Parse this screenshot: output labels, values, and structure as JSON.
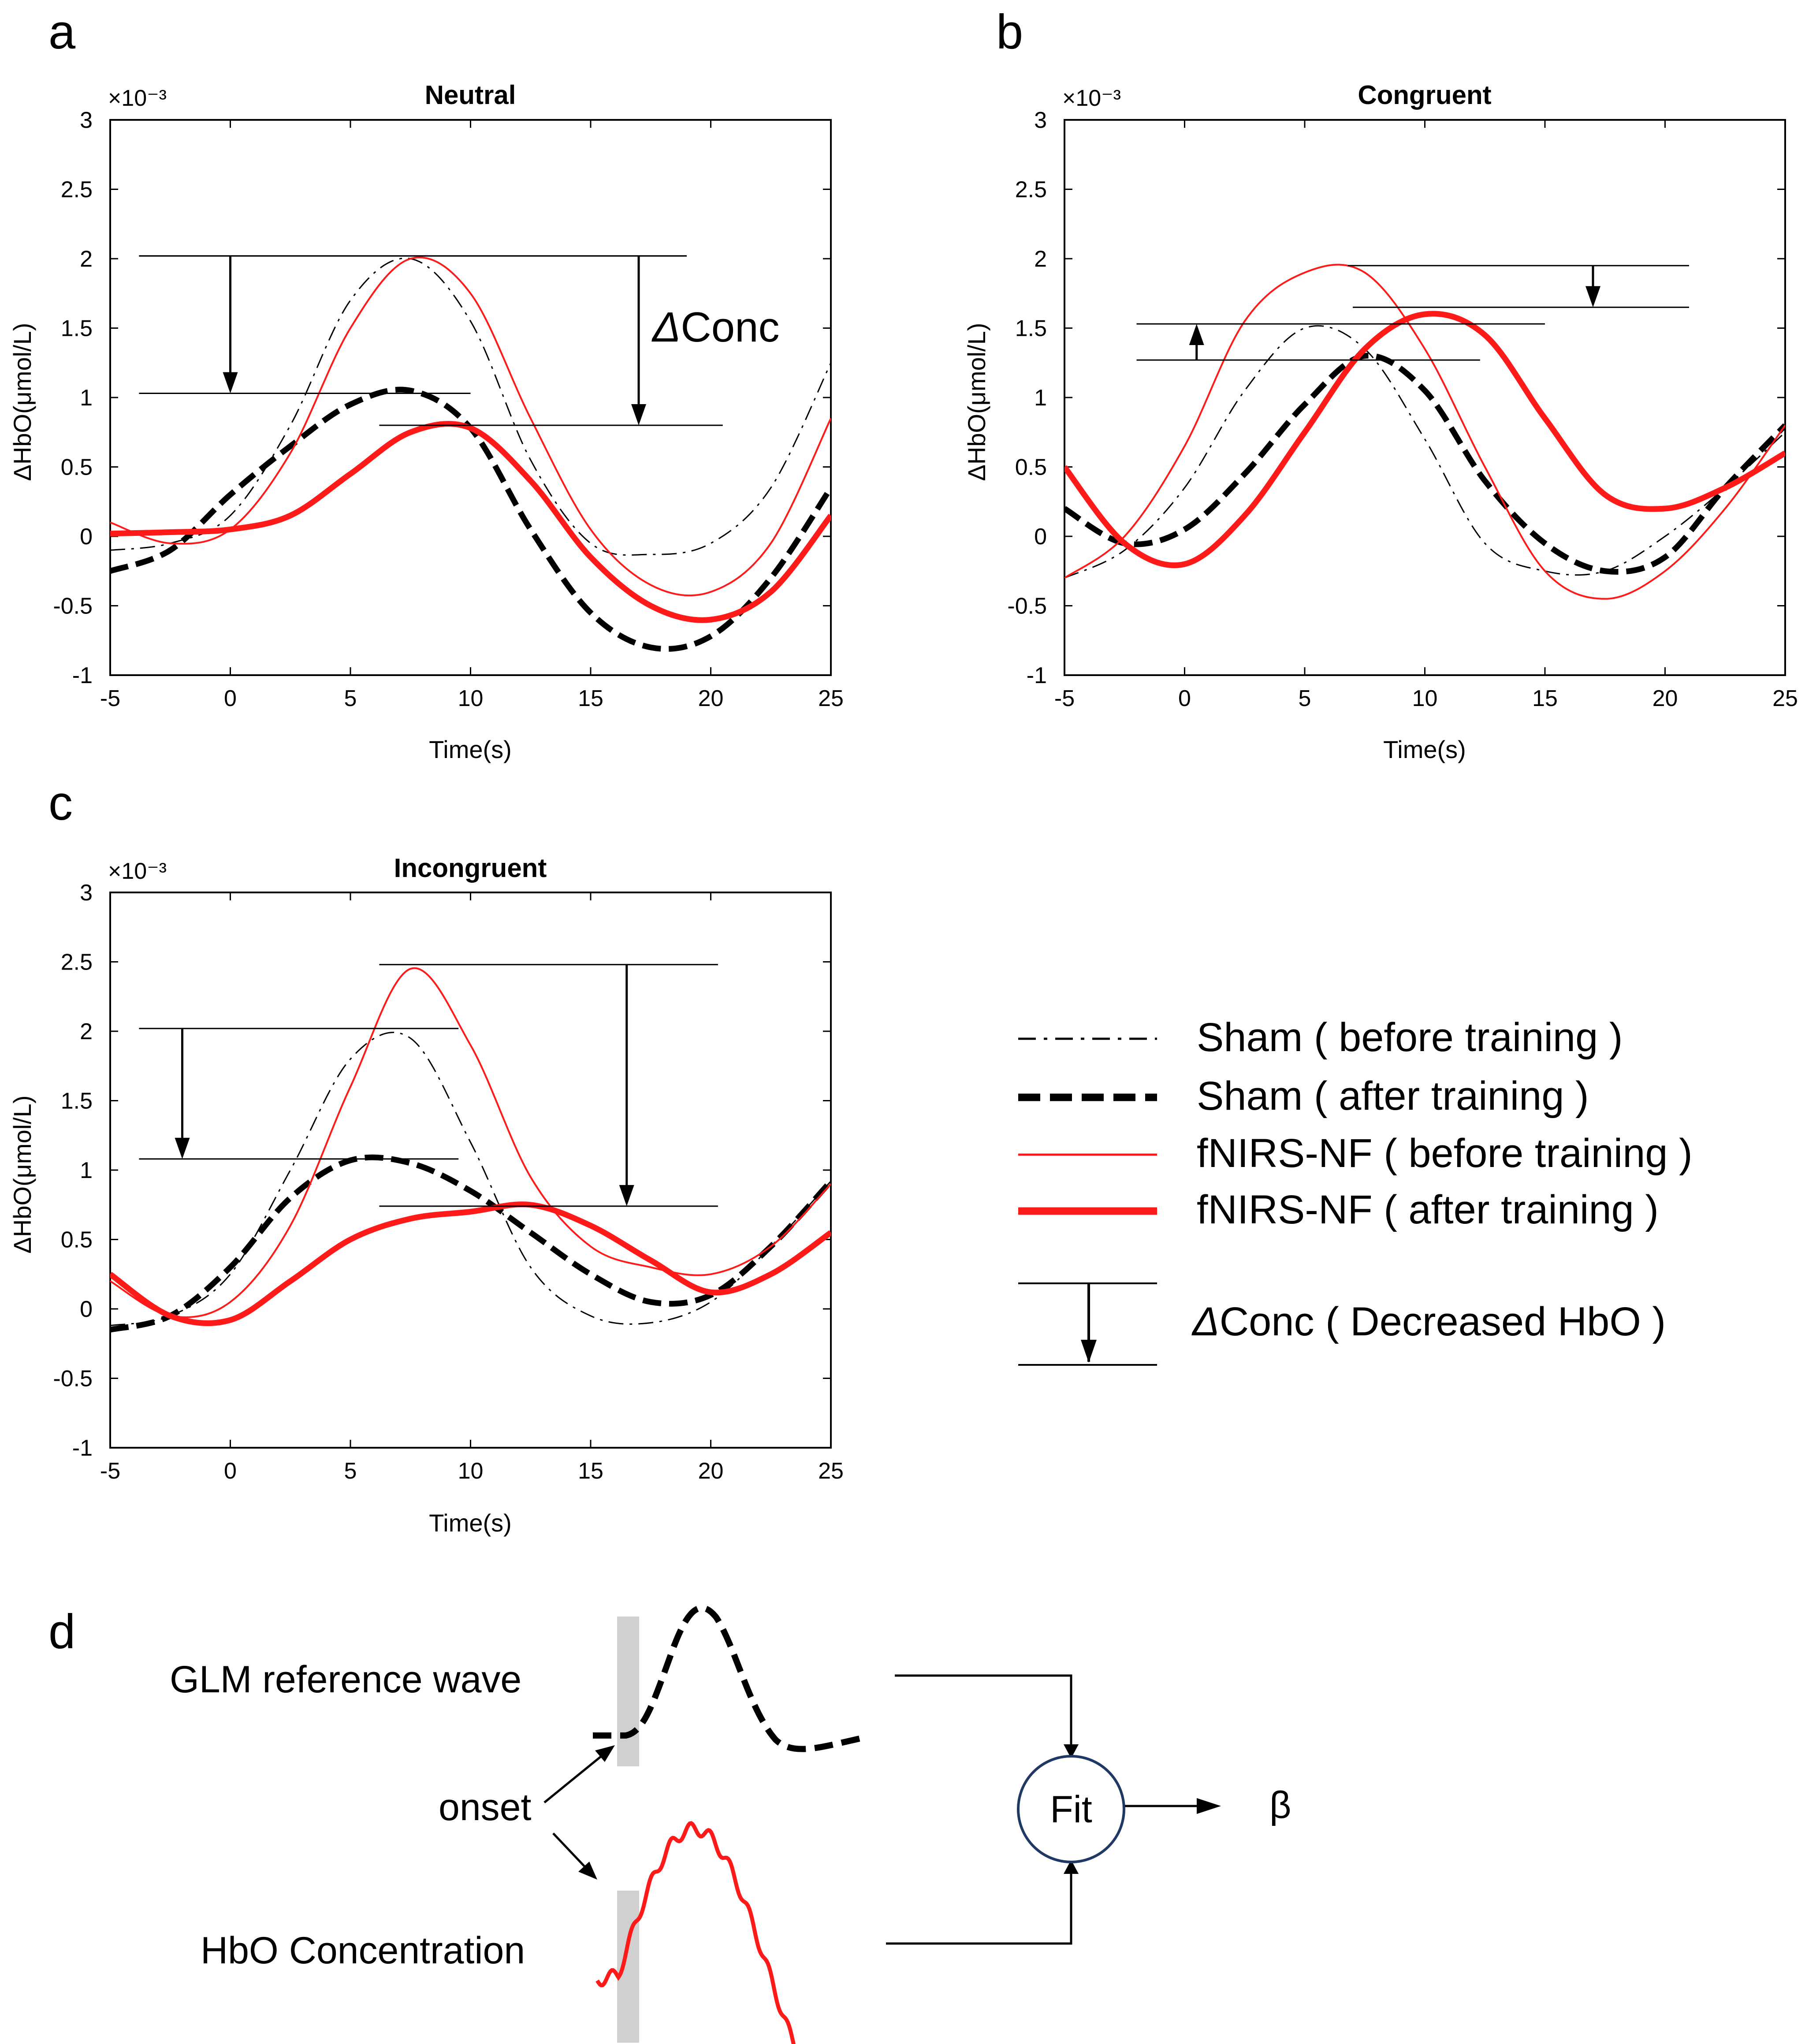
{
  "colors": {
    "sham": "#000000",
    "nf": "#ff1a1a",
    "fit_circle": "#1f3864",
    "onset_bar": "#d0d0d0"
  },
  "chart_data": [
    {
      "type": "line",
      "panel": "a",
      "title": "Neutral",
      "xlabel": "Time(s)",
      "ylabel": "ΔHbO(μmol/L)",
      "yscale": "×10⁻³",
      "xlim": [
        -5,
        25
      ],
      "ylim": [
        -1,
        3
      ],
      "xticks": [
        -5,
        0,
        5,
        10,
        15,
        20,
        25
      ],
      "yticks": [
        -1,
        -0.5,
        0,
        0.5,
        1,
        1.5,
        2,
        2.5,
        3
      ],
      "series": [
        {
          "name": "Sham ( before training )",
          "x": [
            -5,
            -2.5,
            0,
            2.5,
            5,
            7.5,
            10,
            12.5,
            15,
            17.5,
            20,
            22.5,
            25
          ],
          "values": [
            -0.1,
            -0.05,
            0.15,
            0.8,
            1.7,
            2.0,
            1.55,
            0.55,
            -0.05,
            -0.13,
            -0.05,
            0.35,
            1.25
          ]
        },
        {
          "name": "Sham ( after training )",
          "x": [
            -5,
            -2.5,
            0,
            2.5,
            5,
            7.5,
            10,
            12.5,
            15,
            17.5,
            20,
            22.5,
            25
          ],
          "values": [
            -0.25,
            -0.1,
            0.3,
            0.65,
            0.95,
            1.05,
            0.78,
            0.05,
            -0.55,
            -0.8,
            -0.72,
            -0.3,
            0.35
          ]
        },
        {
          "name": "fNIRS-NF ( before training )",
          "x": [
            -5,
            -2.5,
            0,
            2.5,
            5,
            7.5,
            10,
            12.5,
            15,
            17.5,
            20,
            22.5,
            25
          ],
          "values": [
            0.1,
            -0.05,
            0.05,
            0.6,
            1.5,
            2.0,
            1.75,
            0.85,
            0.05,
            -0.35,
            -0.4,
            -0.05,
            0.85
          ]
        },
        {
          "name": "fNIRS-NF ( after training )",
          "x": [
            -5,
            -2.5,
            0,
            2.5,
            5,
            7.5,
            10,
            12.5,
            15,
            17.5,
            20,
            22.5,
            25
          ],
          "values": [
            0.02,
            0.03,
            0.05,
            0.15,
            0.45,
            0.75,
            0.78,
            0.4,
            -0.15,
            -0.5,
            -0.6,
            -0.4,
            0.15
          ]
        }
      ],
      "annotations": [
        {
          "type": "decrease",
          "x": 0,
          "from": 2.02,
          "to": 1.03,
          "bracket_from": [
            -3.8,
            19
          ],
          "bracket_to": [
            -3.8,
            10
          ]
        },
        {
          "type": "decrease",
          "x": 17,
          "from": 2.02,
          "to": 0.8,
          "bracket_from": [
            -3.8,
            19
          ],
          "bracket_to": [
            6.2,
            20.5
          ],
          "label": "ΔConc"
        }
      ]
    },
    {
      "type": "line",
      "panel": "b",
      "title": "Congruent",
      "xlabel": "Time(s)",
      "ylabel": "ΔHbO(μmol/L)",
      "yscale": "×10⁻³",
      "xlim": [
        -5,
        25
      ],
      "ylim": [
        -1,
        3
      ],
      "xticks": [
        -5,
        0,
        5,
        10,
        15,
        20,
        25
      ],
      "yticks": [
        -1,
        -0.5,
        0,
        0.5,
        1,
        1.5,
        2,
        2.5,
        3
      ],
      "series": [
        {
          "name": "Sham ( before training )",
          "x": [
            -5,
            -2.5,
            0,
            2.5,
            5,
            7.5,
            10,
            12.5,
            15,
            17.5,
            20,
            22.5,
            25
          ],
          "values": [
            -0.3,
            -0.1,
            0.35,
            1.05,
            1.5,
            1.35,
            0.7,
            -0.05,
            -0.25,
            -0.25,
            0.0,
            0.35,
            0.75
          ]
        },
        {
          "name": "Sham ( after training )",
          "x": [
            -5,
            -2.5,
            0,
            2.5,
            5,
            7.5,
            10,
            12.5,
            15,
            17.5,
            20,
            22.5,
            25
          ],
          "values": [
            0.2,
            -0.05,
            0.05,
            0.45,
            0.95,
            1.3,
            1.05,
            0.4,
            -0.05,
            -0.25,
            -0.15,
            0.35,
            0.8
          ]
        },
        {
          "name": "fNIRS-NF ( before training )",
          "x": [
            -5,
            -2.5,
            0,
            2.5,
            5,
            7.5,
            10,
            12.5,
            15,
            17.5,
            20,
            22.5,
            25
          ],
          "values": [
            -0.3,
            0.0,
            0.65,
            1.55,
            1.9,
            1.9,
            1.35,
            0.5,
            -0.25,
            -0.45,
            -0.25,
            0.2,
            0.8
          ]
        },
        {
          "name": "fNIRS-NF ( after training )",
          "x": [
            -5,
            -2.5,
            0,
            2.5,
            5,
            7.5,
            10,
            12.5,
            15,
            17.5,
            20,
            22.5,
            25
          ],
          "values": [
            0.5,
            -0.05,
            -0.2,
            0.15,
            0.75,
            1.35,
            1.6,
            1.45,
            0.85,
            0.3,
            0.2,
            0.35,
            0.6
          ]
        }
      ],
      "annotations": [
        {
          "type": "increase",
          "x": 0.5,
          "from": 1.27,
          "to": 1.53,
          "bracket_from": [
            -2,
            12.3
          ],
          "bracket_to": [
            -2,
            15
          ]
        },
        {
          "type": "decrease",
          "x": 17,
          "from": 1.95,
          "to": 1.65,
          "bracket_from": [
            6.8,
            21
          ],
          "bracket_to": [
            7,
            21
          ]
        }
      ]
    },
    {
      "type": "line",
      "panel": "c",
      "title": "Incongruent",
      "xlabel": "Time(s)",
      "ylabel": "ΔHbO(μmol/L)",
      "yscale": "×10⁻³",
      "xlim": [
        -5,
        25
      ],
      "ylim": [
        -1,
        3
      ],
      "xticks": [
        -5,
        0,
        5,
        10,
        15,
        20,
        25
      ],
      "yticks": [
        -1,
        -0.5,
        0,
        0.5,
        1,
        1.5,
        2,
        2.5,
        3
      ],
      "series": [
        {
          "name": "Sham ( before training )",
          "x": [
            -5,
            -2.5,
            0,
            2.5,
            5,
            7.5,
            10,
            12.5,
            15,
            17.5,
            20,
            22.5,
            25
          ],
          "values": [
            -0.12,
            -0.05,
            0.25,
            1.0,
            1.8,
            1.95,
            1.2,
            0.3,
            -0.05,
            -0.1,
            0.05,
            0.45,
            0.92
          ]
        },
        {
          "name": "Sham ( after training )",
          "x": [
            -5,
            -2.5,
            0,
            2.5,
            5,
            7.5,
            10,
            12.5,
            15,
            17.5,
            20,
            22.5,
            25
          ],
          "values": [
            -0.15,
            -0.05,
            0.3,
            0.8,
            1.07,
            1.05,
            0.85,
            0.55,
            0.25,
            0.05,
            0.1,
            0.45,
            0.92
          ]
        },
        {
          "name": "fNIRS-NF ( before training )",
          "x": [
            -5,
            -2.5,
            0,
            2.5,
            5,
            7.5,
            10,
            12.5,
            15,
            17.5,
            20,
            22.5,
            25
          ],
          "values": [
            0.2,
            -0.05,
            0.05,
            0.6,
            1.6,
            2.45,
            1.9,
            0.95,
            0.45,
            0.3,
            0.25,
            0.45,
            0.9
          ]
        },
        {
          "name": "fNIRS-NF ( after training )",
          "x": [
            -5,
            -2.5,
            0,
            2.5,
            5,
            7.5,
            10,
            12.5,
            15,
            17.5,
            20,
            22.5,
            25
          ],
          "values": [
            0.25,
            -0.05,
            -0.08,
            0.2,
            0.5,
            0.65,
            0.7,
            0.75,
            0.6,
            0.35,
            0.12,
            0.25,
            0.55
          ]
        }
      ],
      "annotations": [
        {
          "type": "decrease",
          "x": -2,
          "from": 2.02,
          "to": 1.08,
          "bracket_from": [
            -3.8,
            9.5
          ],
          "bracket_to": [
            -3.8,
            9.5
          ]
        },
        {
          "type": "decrease",
          "x": 16.5,
          "from": 2.48,
          "to": 0.74,
          "bracket_from": [
            6.2,
            20.3
          ],
          "bracket_to": [
            6.2,
            20.3
          ]
        }
      ]
    }
  ],
  "legend": {
    "items": [
      {
        "label": "Sham ( before training )",
        "style": "sham-before"
      },
      {
        "label": "Sham ( after training )",
        "style": "sham-after"
      },
      {
        "label": "fNIRS-NF ( before training )",
        "style": "nf-before"
      },
      {
        "label": "fNIRS-NF ( after training )",
        "style": "nf-after"
      }
    ],
    "arrow_label_italic": "Δ",
    "arrow_label": "Conc ( Decreased HbO )"
  },
  "panel_d": {
    "label": "d",
    "glm_label": "GLM reference wave",
    "onset_label": "onset",
    "hbo_label": "HbO Concentration",
    "fit_label": "Fit",
    "beta_label": "β"
  },
  "panel_a_conc_italic": "Δ",
  "panel_a_conc": "Conc"
}
